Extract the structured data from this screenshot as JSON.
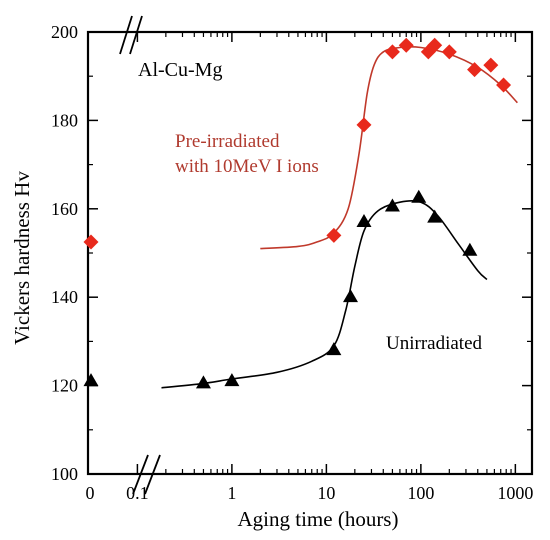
{
  "chart_data": {
    "type": "scatter",
    "title": "Al-Cu-Mg",
    "xlabel": "Aging time (hours)",
    "ylabel": "Vickers hardness Hv",
    "x_scale": "log",
    "xlim": [
      0.03,
      1500
    ],
    "ylim": [
      100,
      200
    ],
    "zero_label": "0",
    "x_ticks": [
      {
        "v": 0.1,
        "label": "0.1"
      },
      {
        "v": 1,
        "label": "1"
      },
      {
        "v": 10,
        "label": "10"
      },
      {
        "v": 100,
        "label": "100"
      },
      {
        "v": 1000,
        "label": "1000"
      }
    ],
    "y_ticks": [
      {
        "v": 100,
        "label": "100"
      },
      {
        "v": 120,
        "label": "120"
      },
      {
        "v": 140,
        "label": "140"
      },
      {
        "v": 160,
        "label": "160"
      },
      {
        "v": 180,
        "label": "180"
      },
      {
        "v": 200,
        "label": "200"
      }
    ],
    "axis_break": true,
    "grid": false,
    "series": [
      {
        "name": "Pre-irradiated with 10MeV I ions",
        "label_lines": [
          "Pre-irradiated",
          "with 10MeV I ions"
        ],
        "marker": "diamond",
        "color": "#e8291c",
        "line_color": "#c0392b",
        "value_at_zero": 152.5,
        "points": [
          [
            12,
            154
          ],
          [
            25,
            179
          ],
          [
            50,
            195.5
          ],
          [
            70,
            197
          ],
          [
            120,
            195.5
          ],
          [
            140,
            197
          ],
          [
            200,
            195.5
          ],
          [
            370,
            191.5
          ],
          [
            550,
            192.5
          ],
          [
            750,
            188
          ]
        ],
        "curve": [
          [
            2,
            151
          ],
          [
            5,
            151.5
          ],
          [
            8,
            152.5
          ],
          [
            12,
            154.5
          ],
          [
            17,
            160
          ],
          [
            22,
            172
          ],
          [
            27,
            186
          ],
          [
            32,
            192.5
          ],
          [
            40,
            195.5
          ],
          [
            60,
            196.5
          ],
          [
            100,
            196.5
          ],
          [
            200,
            195
          ],
          [
            400,
            192
          ],
          [
            700,
            188
          ],
          [
            1050,
            184
          ]
        ]
      },
      {
        "name": "Unirradiated",
        "label_lines": [
          "Unirradiated"
        ],
        "marker": "triangle",
        "color": "#000000",
        "line_color": "#000000",
        "value_at_zero": 121,
        "points": [
          [
            0.5,
            120.5
          ],
          [
            1,
            121
          ],
          [
            12,
            128
          ],
          [
            18,
            140
          ],
          [
            25,
            157
          ],
          [
            50,
            160.5
          ],
          [
            95,
            162.5
          ],
          [
            140,
            158
          ],
          [
            330,
            150.5
          ]
        ],
        "curve": [
          [
            0.18,
            119.5
          ],
          [
            0.5,
            120.5
          ],
          [
            1,
            121.5
          ],
          [
            3,
            123
          ],
          [
            7,
            125.5
          ],
          [
            12,
            129
          ],
          [
            16,
            137
          ],
          [
            20,
            147
          ],
          [
            25,
            155
          ],
          [
            35,
            159.5
          ],
          [
            60,
            161.5
          ],
          [
            100,
            161.5
          ],
          [
            150,
            158.5
          ],
          [
            250,
            152
          ],
          [
            400,
            146
          ],
          [
            500,
            144
          ]
        ]
      }
    ]
  }
}
